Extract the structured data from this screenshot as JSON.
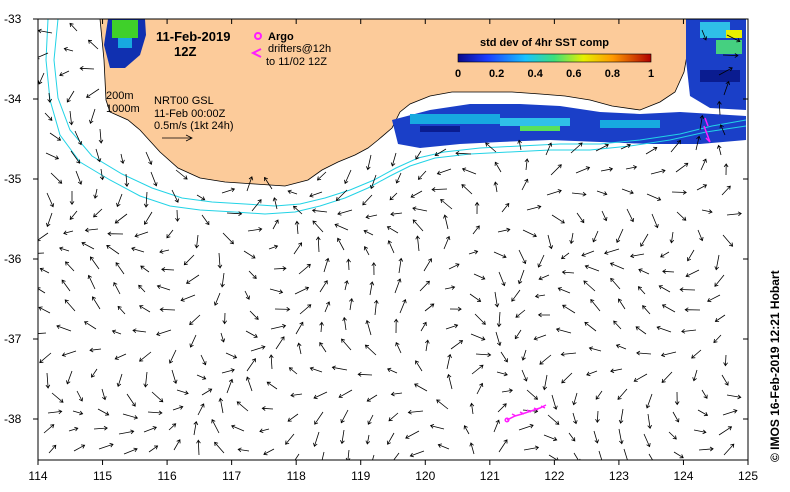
{
  "map": {
    "date_line": "11-Feb-2019",
    "time_line": "12Z",
    "legend": {
      "argo_label": "Argo",
      "drifters_line1": "drifters@12h",
      "drifters_line2": "to 11/02 12Z",
      "depth_200": "200m",
      "depth_1000": "1000m",
      "product_line1": "NRT00 GSL",
      "product_line2": "11-Feb 00:00Z",
      "scale_label": "0.5m/s (1kt 24h)"
    },
    "colorbar": {
      "title": "std dev of 4hr SST comp",
      "ticks": [
        "0",
        "0.2",
        "0.4",
        "0.6",
        "0.8",
        "1"
      ]
    },
    "credit": "© IMOS 16-Feb-2019 12:21 Hobart",
    "x_ticks": [
      "114",
      "115",
      "116",
      "117",
      "118",
      "119",
      "120",
      "121",
      "122",
      "123",
      "124",
      "125"
    ],
    "y_ticks": [
      "-33",
      "-34",
      "-35",
      "-36",
      "-37",
      "-38"
    ],
    "colors": {
      "land": "#fccb9a",
      "isobath": "#22d3e6",
      "drifter": "#ff1dff",
      "arrows": "#000000"
    }
  }
}
